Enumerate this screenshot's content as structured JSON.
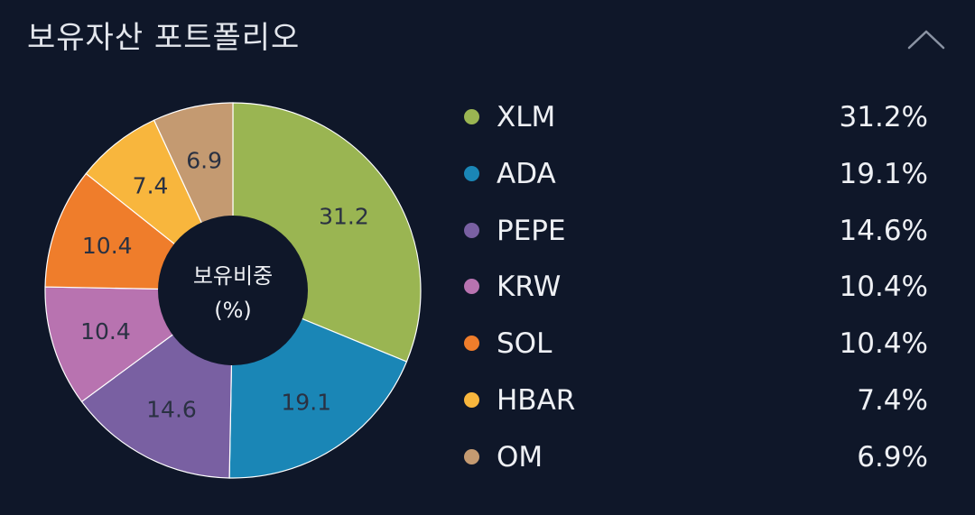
{
  "header": {
    "title": "보유자산 포트폴리오",
    "collapse_icon": "chevron-up-icon"
  },
  "colors": {
    "background": "#0f1729",
    "hole": "#0f1729",
    "text": "#e6e9ef",
    "label_on_slice": "#2a3142"
  },
  "chart_data": {
    "type": "pie",
    "donut": true,
    "center_label": [
      "보유비중",
      "(%)"
    ],
    "categories": [
      "XLM",
      "ADA",
      "PEPE",
      "KRW",
      "SOL",
      "HBAR",
      "OM"
    ],
    "values": [
      31.2,
      19.1,
      14.6,
      10.4,
      10.4,
      7.4,
      6.9
    ],
    "slice_labels": [
      "31.2",
      "19.1",
      "14.6",
      "10.4",
      "10.4",
      "7.4",
      "6.9"
    ],
    "colors": [
      "#9ab552",
      "#1a86b6",
      "#7960a2",
      "#b873b0",
      "#ef7d2b",
      "#f8b63d",
      "#c49a71"
    ],
    "legend_placement": "right",
    "legend": [
      {
        "name": "XLM",
        "value": "31.2%",
        "color": "#9ab552"
      },
      {
        "name": "ADA",
        "value": "19.1%",
        "color": "#1a86b6"
      },
      {
        "name": "PEPE",
        "value": "14.6%",
        "color": "#7960a2"
      },
      {
        "name": "KRW",
        "value": "10.4%",
        "color": "#b873b0"
      },
      {
        "name": "SOL",
        "value": "10.4%",
        "color": "#ef7d2b"
      },
      {
        "name": "HBAR",
        "value": "7.4%",
        "color": "#f8b63d"
      },
      {
        "name": "OM",
        "value": "6.9%",
        "color": "#c49a71"
      }
    ]
  }
}
